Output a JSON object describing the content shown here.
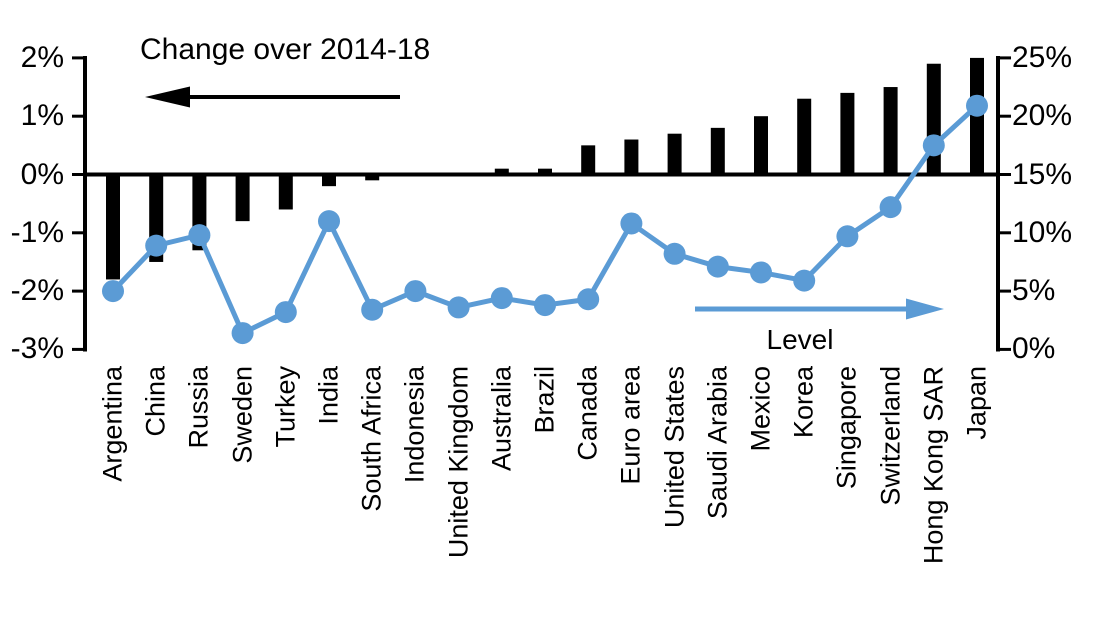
{
  "chart_data": {
    "type": "combo-bar-line",
    "categories": [
      "Argentina",
      "China",
      "Russia",
      "Sweden",
      "Turkey",
      "India",
      "South Africa",
      "Indonesia",
      "United Kingdom",
      "Australia",
      "Brazil",
      "Canada",
      "Euro area",
      "United States",
      "Saudi Arabia",
      "Mexico",
      "Korea",
      "Singapore",
      "Switzerland",
      "Hong Kong SAR",
      "Japan"
    ],
    "series": [
      {
        "name": "Change over 2014-18",
        "type": "bar",
        "axis": "left",
        "color": "#000000",
        "values": [
          -1.8,
          -1.5,
          -1.3,
          -0.8,
          -0.6,
          -0.2,
          -0.1,
          0,
          0,
          0.1,
          0.1,
          0.5,
          0.6,
          0.7,
          0.8,
          1.0,
          1.3,
          1.4,
          1.5,
          1.9,
          2.0
        ]
      },
      {
        "name": "Level",
        "type": "line",
        "axis": "right",
        "color": "#5b9bd5",
        "values": [
          5.0,
          8.9,
          9.8,
          1.4,
          3.2,
          11.0,
          3.4,
          5.0,
          3.6,
          4.4,
          3.8,
          4.3,
          10.8,
          8.2,
          7.1,
          6.6,
          5.9,
          9.7,
          12.2,
          17.5,
          20.9
        ]
      }
    ],
    "left_axis": {
      "tick_labels": [
        "2%",
        "1%",
        "0%",
        "-1%",
        "-2%",
        "-3%"
      ],
      "min": -3,
      "max": 2,
      "unit": "%"
    },
    "right_axis": {
      "tick_labels": [
        "25%",
        "20%",
        "15%",
        "10%",
        "5%",
        "0%"
      ],
      "min": 0,
      "max": 25,
      "unit": "%"
    },
    "grid": false,
    "annotations": {
      "bar_arrow_direction": "left",
      "line_arrow_direction": "right"
    }
  }
}
